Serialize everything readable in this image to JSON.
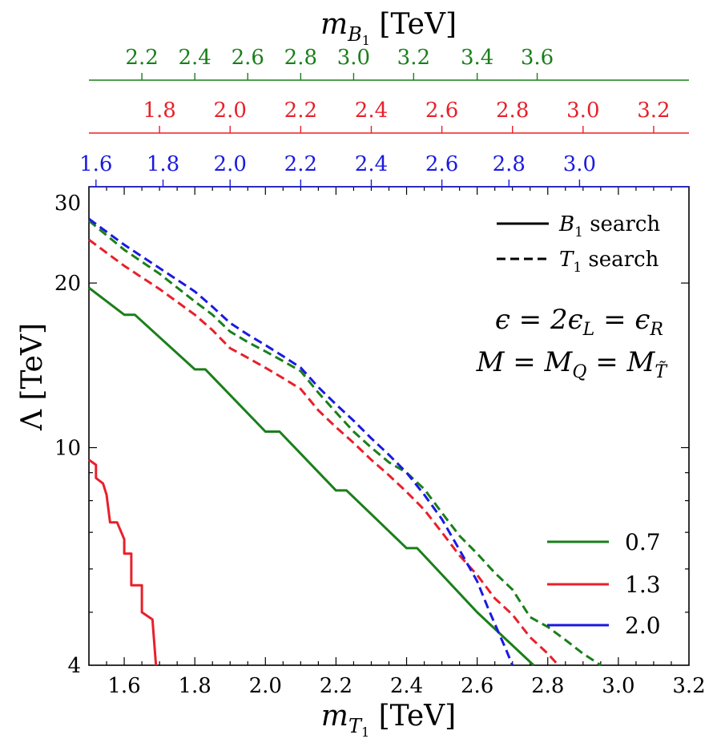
{
  "chart_data": {
    "type": "line",
    "xlabel": "m_T1 [TeV]",
    "ylabel": "Λ [TeV]",
    "top_title": "m_B1 [TeV]",
    "xlim": [
      1.5,
      3.2
    ],
    "ylim": [
      4,
      30
    ],
    "yscale": "log",
    "x_ticks": [
      "1.6",
      "1.8",
      "2.0",
      "2.2",
      "2.4",
      "2.6",
      "2.8",
      "3.0",
      "3.2"
    ],
    "y_ticks": [
      "4",
      "10",
      "20",
      "30"
    ],
    "top_axes": [
      {
        "color": "#1a7f1a",
        "ticks": [
          "2.2",
          "2.4",
          "2.6",
          "2.8",
          "3.0",
          "3.2",
          "3.4",
          "3.6"
        ],
        "tick_x_at_mT1": [
          1.65,
          1.8,
          1.95,
          2.1,
          2.25,
          2.42,
          2.6,
          2.77
        ]
      },
      {
        "color": "#e8202a",
        "ticks": [
          "1.8",
          "2.0",
          "2.2",
          "2.4",
          "2.6",
          "2.8",
          "3.0",
          "3.2"
        ],
        "tick_x_at_mT1": [
          1.7,
          1.9,
          2.1,
          2.3,
          2.5,
          2.7,
          2.9,
          3.1
        ]
      },
      {
        "color": "#1a1ae0",
        "ticks": [
          "1.6",
          "1.8",
          "2.0",
          "2.2",
          "2.4",
          "2.6",
          "2.8",
          "3.0"
        ],
        "tick_x_at_mT1": [
          1.52,
          1.71,
          1.9,
          2.1,
          2.3,
          2.5,
          2.69,
          2.89
        ]
      }
    ],
    "annotations": [
      "ϵ = 2ϵ_L = ϵ_R",
      "M = M_Q = M_T̃"
    ],
    "style_legend": [
      {
        "label": "B1 search",
        "style": "solid"
      },
      {
        "label": "T1 search",
        "style": "dashed"
      }
    ],
    "legend_title": "",
    "legend": [
      {
        "label": "0.7",
        "color": "#1a7f1a"
      },
      {
        "label": "1.3",
        "color": "#e8202a"
      },
      {
        "label": "2.0",
        "color": "#1a1ae0"
      }
    ],
    "series": [
      {
        "name": "0.7 B1 search",
        "color": "#1a7f1a",
        "style": "solid",
        "x": [
          1.5,
          1.6,
          1.63,
          1.8,
          1.83,
          2.0,
          2.04,
          2.2,
          2.23,
          2.4,
          2.43,
          2.6,
          2.76
        ],
        "y": [
          19.6,
          17.5,
          17.5,
          13.9,
          13.9,
          10.7,
          10.7,
          8.35,
          8.35,
          6.55,
          6.55,
          5.0,
          4.0
        ]
      },
      {
        "name": "1.3 B1 search",
        "color": "#e8202a",
        "style": "solid",
        "x": [
          1.5,
          1.52,
          1.52,
          1.54,
          1.55,
          1.56,
          1.58,
          1.6,
          1.6,
          1.62,
          1.62,
          1.65,
          1.65,
          1.68,
          1.69
        ],
        "y": [
          9.5,
          9.3,
          8.8,
          8.6,
          8.2,
          7.3,
          7.3,
          6.8,
          6.4,
          6.4,
          5.6,
          5.6,
          5.0,
          4.85,
          4.0
        ]
      },
      {
        "name": "0.7 T1 search",
        "color": "#1a7f1a",
        "style": "dashed",
        "x": [
          1.5,
          1.6,
          1.7,
          1.8,
          1.85,
          1.9,
          1.95,
          2.0,
          2.05,
          2.1,
          2.15,
          2.2,
          2.25,
          2.3,
          2.35,
          2.4,
          2.45,
          2.5,
          2.55,
          2.6,
          2.65,
          2.7,
          2.75,
          2.8,
          2.85,
          2.9,
          2.95
        ],
        "y": [
          26.0,
          23.0,
          20.8,
          18.5,
          17.5,
          16.3,
          15.6,
          15.0,
          14.4,
          13.8,
          12.6,
          11.6,
          10.7,
          10.0,
          9.4,
          9.0,
          8.4,
          7.6,
          6.9,
          6.4,
          5.9,
          5.5,
          4.9,
          4.7,
          4.45,
          4.2,
          4.0
        ]
      },
      {
        "name": "1.3 T1 search",
        "color": "#e8202a",
        "style": "dashed",
        "x": [
          1.5,
          1.6,
          1.7,
          1.8,
          1.85,
          1.9,
          1.95,
          2.0,
          2.05,
          2.1,
          2.15,
          2.2,
          2.25,
          2.3,
          2.35,
          2.4,
          2.45,
          2.5,
          2.55,
          2.6,
          2.65,
          2.7,
          2.75,
          2.8,
          2.83
        ],
        "y": [
          24.0,
          21.5,
          19.5,
          17.5,
          16.4,
          15.2,
          14.6,
          14.0,
          13.4,
          12.8,
          11.7,
          10.9,
          10.2,
          9.5,
          8.9,
          8.3,
          7.7,
          7.0,
          6.35,
          5.85,
          5.3,
          4.95,
          4.5,
          4.2,
          4.0
        ]
      },
      {
        "name": "2.0 T1 search",
        "color": "#1a1ae0",
        "style": "dashed",
        "x": [
          1.5,
          1.6,
          1.7,
          1.8,
          1.85,
          1.9,
          1.95,
          2.0,
          2.05,
          2.1,
          2.15,
          2.2,
          2.25,
          2.3,
          2.35,
          2.4,
          2.45,
          2.5,
          2.55,
          2.6,
          2.63,
          2.66,
          2.68,
          2.7
        ],
        "y": [
          26.2,
          23.5,
          21.3,
          19.3,
          18.1,
          16.9,
          16.1,
          15.4,
          14.7,
          14.0,
          12.9,
          12.0,
          11.2,
          10.4,
          9.7,
          9.0,
          8.2,
          7.4,
          6.5,
          5.7,
          5.1,
          4.6,
          4.3,
          4.0
        ]
      }
    ]
  }
}
